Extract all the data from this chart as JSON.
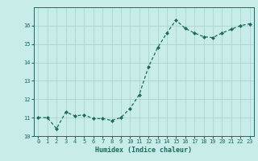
{
  "x": [
    0,
    1,
    2,
    3,
    4,
    5,
    6,
    7,
    8,
    9,
    10,
    11,
    12,
    13,
    14,
    15,
    16,
    17,
    18,
    19,
    20,
    21,
    22,
    23
  ],
  "y": [
    11.0,
    11.0,
    10.4,
    11.3,
    11.1,
    11.15,
    10.95,
    10.95,
    10.85,
    11.0,
    11.5,
    12.25,
    13.75,
    14.8,
    15.6,
    16.3,
    15.85,
    15.6,
    15.4,
    15.35,
    15.6,
    15.8,
    16.0,
    16.1
  ],
  "title": "",
  "xlabel": "Humidex (Indice chaleur)",
  "ylabel": "",
  "bg_color": "#c8ece8",
  "grid_color": "#aed4ce",
  "line_color": "#1a6b5a",
  "marker_color": "#1a6b5a",
  "ylim": [
    10,
    17
  ],
  "xlim": [
    -0.5,
    23.5
  ],
  "yticks": [
    10,
    11,
    12,
    13,
    14,
    15,
    16
  ],
  "xticks": [
    0,
    1,
    2,
    3,
    4,
    5,
    6,
    7,
    8,
    9,
    10,
    11,
    12,
    13,
    14,
    15,
    16,
    17,
    18,
    19,
    20,
    21,
    22,
    23
  ],
  "tick_color": "#1a6b5a",
  "axis_color": "#1a6b5a",
  "font_color": "#1a6b5a"
}
